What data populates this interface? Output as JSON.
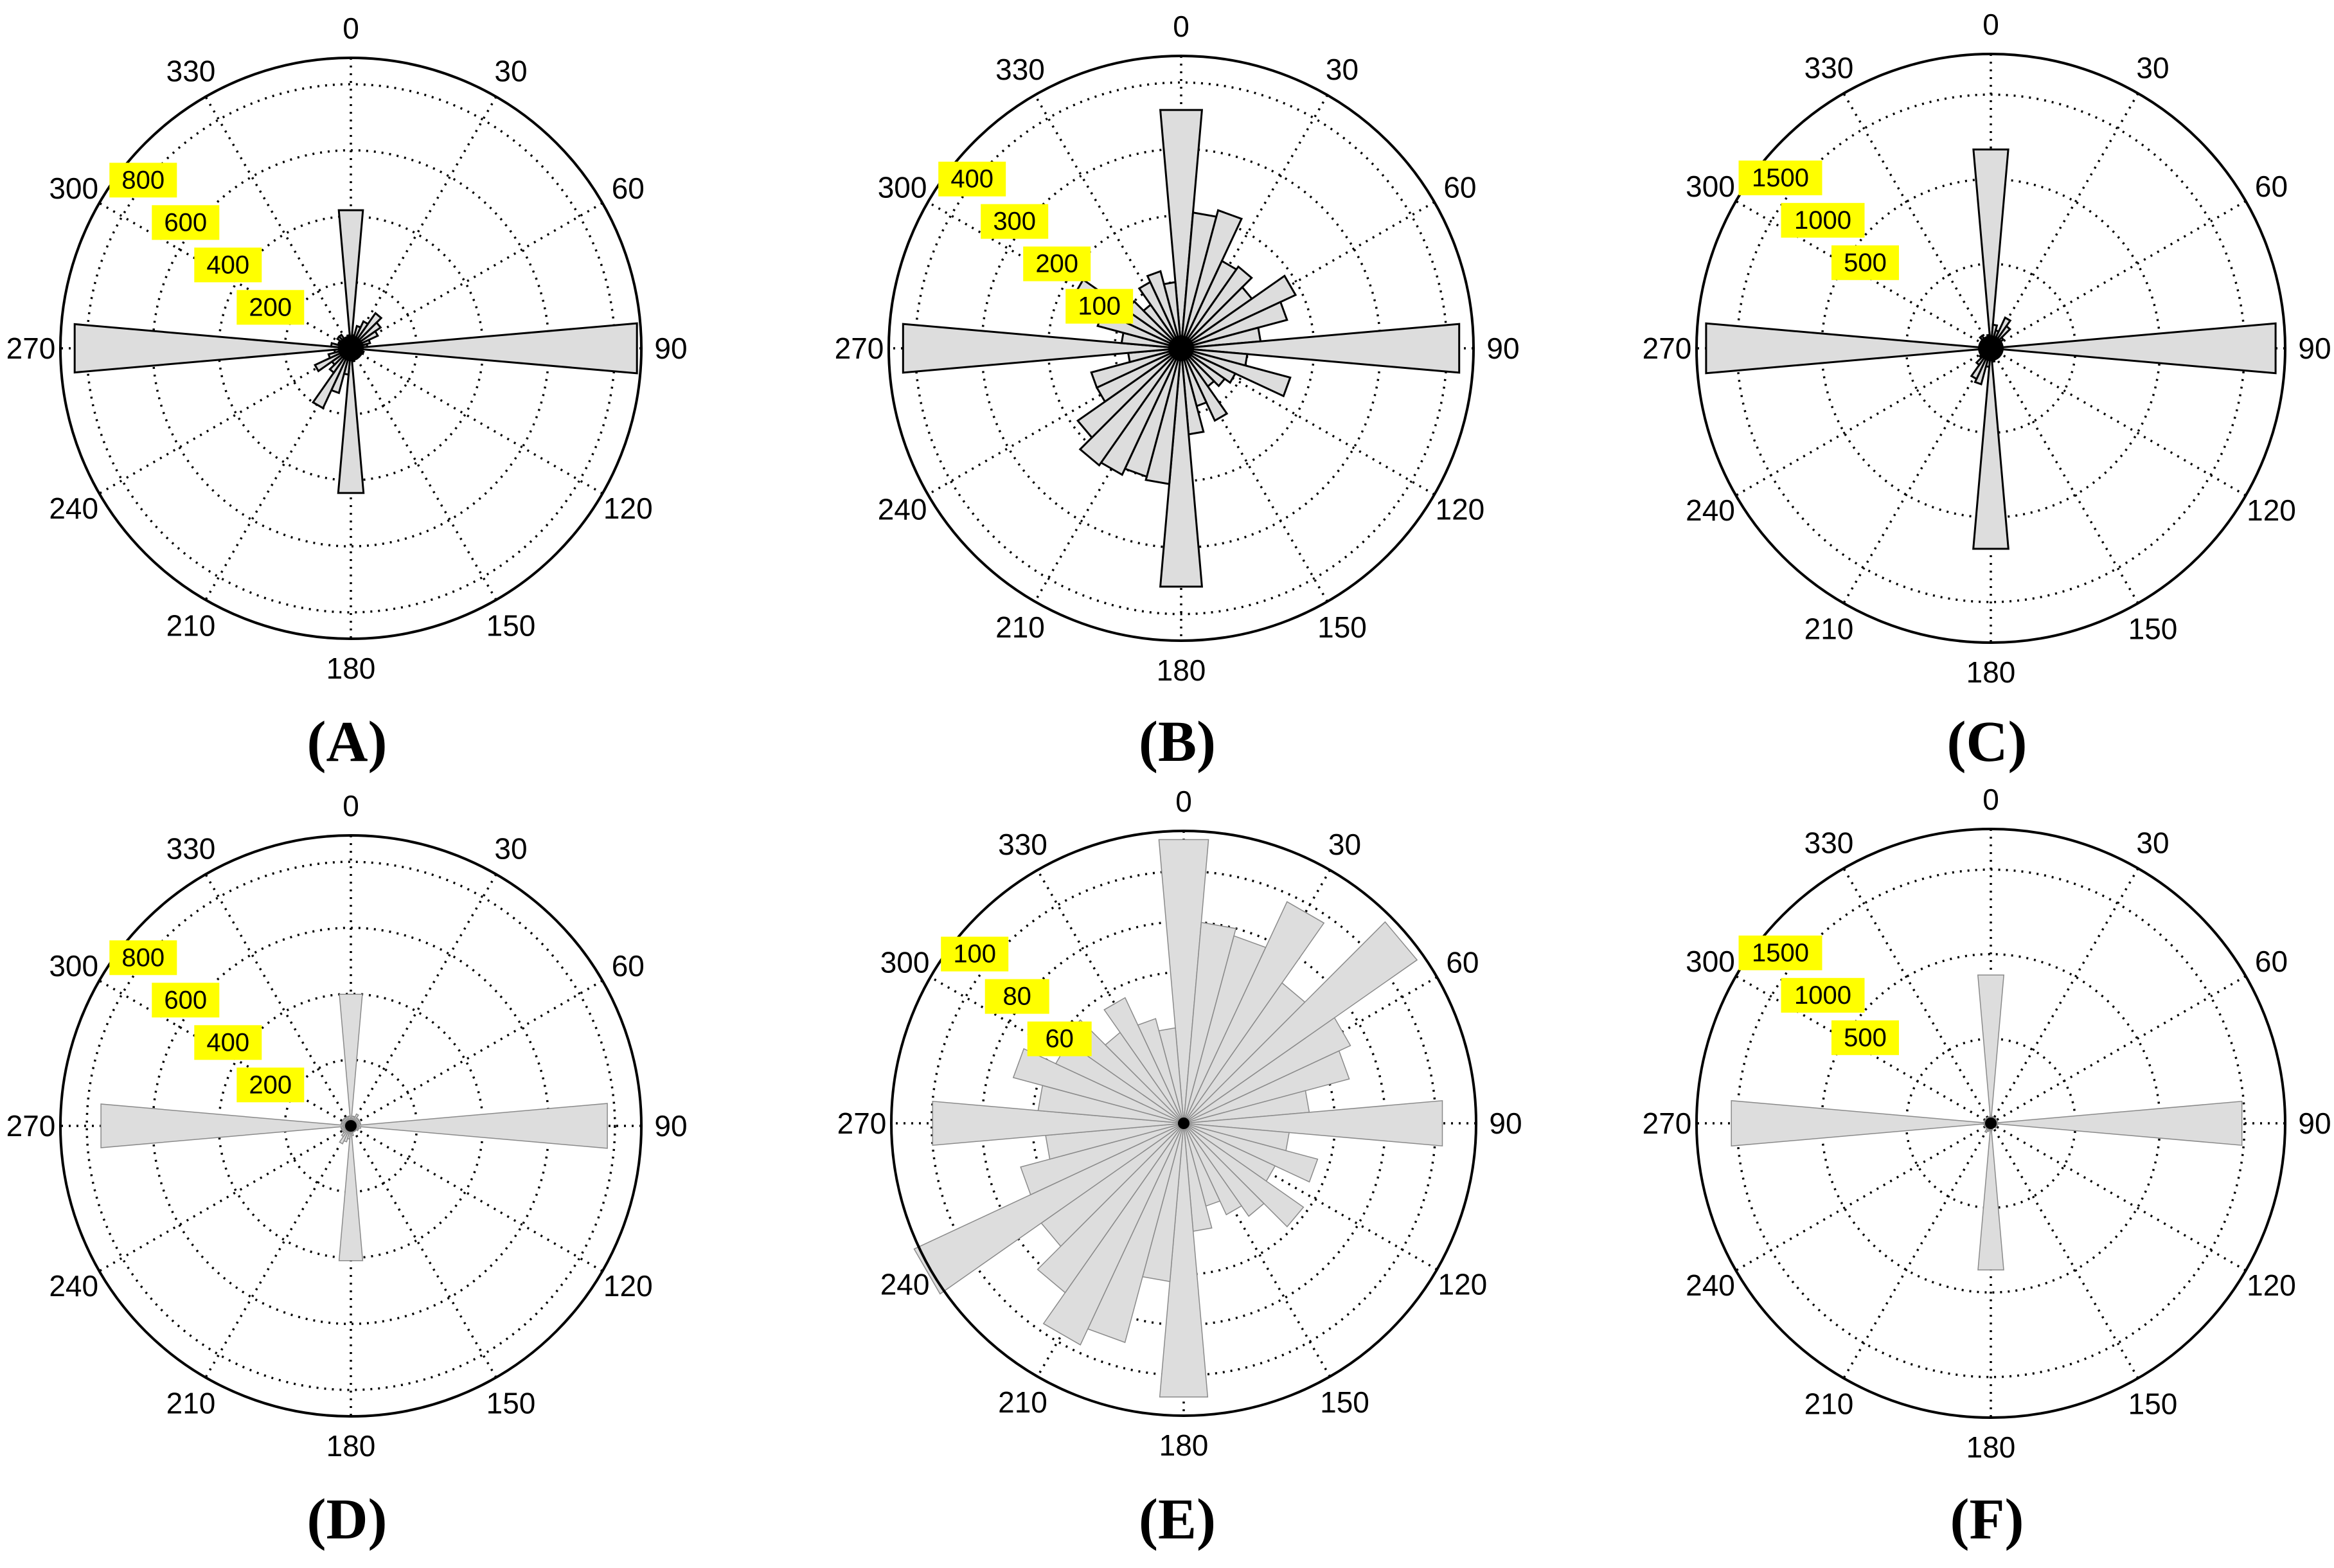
{
  "colors": {
    "bar_fill": "#dddddd",
    "bar_stroke": "#000000",
    "label_highlight": "#ffff00",
    "grid": "#000000"
  },
  "panels": [
    {
      "caption": "(A)"
    },
    {
      "caption": "(B)"
    },
    {
      "caption": "(C)"
    },
    {
      "caption": "(D)"
    },
    {
      "caption": "(E)"
    },
    {
      "caption": "(F)"
    }
  ],
  "chart_data": [
    {
      "type": "rose",
      "panel": "(A)",
      "angle_ticks": [
        "0",
        "30",
        "60",
        "90",
        "120",
        "150",
        "180",
        "210",
        "240",
        "270",
        "300",
        "330"
      ],
      "r_ticks": [
        "200",
        "400",
        "600",
        "800"
      ],
      "r_tick_values": [
        200,
        400,
        600,
        800
      ],
      "rmax": 880,
      "bin_width_deg": 10,
      "bar_outline": true,
      "bins": [
        [
          0,
          420
        ],
        [
          10,
          40
        ],
        [
          20,
          70
        ],
        [
          30,
          90
        ],
        [
          40,
          130
        ],
        [
          50,
          110
        ],
        [
          60,
          90
        ],
        [
          70,
          60
        ],
        [
          80,
          50
        ],
        [
          90,
          870
        ],
        [
          100,
          30
        ],
        [
          110,
          40
        ],
        [
          120,
          30
        ],
        [
          130,
          25
        ],
        [
          140,
          30
        ],
        [
          150,
          20
        ],
        [
          160,
          25
        ],
        [
          170,
          40
        ],
        [
          180,
          440
        ],
        [
          190,
          80
        ],
        [
          200,
          140
        ],
        [
          210,
          200
        ],
        [
          220,
          90
        ],
        [
          230,
          70
        ],
        [
          240,
          120
        ],
        [
          250,
          70
        ],
        [
          260,
          50
        ],
        [
          270,
          840
        ],
        [
          280,
          60
        ],
        [
          290,
          40
        ],
        [
          300,
          40
        ],
        [
          310,
          50
        ],
        [
          320,
          50
        ],
        [
          330,
          30
        ],
        [
          340,
          30
        ],
        [
          350,
          40
        ]
      ]
    },
    {
      "type": "rose",
      "panel": "(B)",
      "angle_ticks": [
        "0",
        "30",
        "60",
        "90",
        "120",
        "150",
        "180",
        "210",
        "240",
        "270",
        "300",
        "330"
      ],
      "r_ticks": [
        "100",
        "200",
        "300",
        "400"
      ],
      "r_tick_values": [
        100,
        200,
        300,
        400
      ],
      "rmax": 440,
      "bin_width_deg": 10,
      "bar_outline": true,
      "bins": [
        [
          0,
          360
        ],
        [
          10,
          205
        ],
        [
          20,
          215
        ],
        [
          30,
          145
        ],
        [
          40,
          150
        ],
        [
          50,
          130
        ],
        [
          60,
          190
        ],
        [
          70,
          165
        ],
        [
          80,
          120
        ],
        [
          90,
          420
        ],
        [
          100,
          100
        ],
        [
          110,
          170
        ],
        [
          120,
          90
        ],
        [
          130,
          80
        ],
        [
          140,
          70
        ],
        [
          150,
          120
        ],
        [
          160,
          90
        ],
        [
          170,
          130
        ],
        [
          180,
          360
        ],
        [
          190,
          205
        ],
        [
          200,
          200
        ],
        [
          210,
          210
        ],
        [
          220,
          215
        ],
        [
          230,
          190
        ],
        [
          240,
          140
        ],
        [
          250,
          140
        ],
        [
          260,
          80
        ],
        [
          270,
          420
        ],
        [
          280,
          90
        ],
        [
          290,
          130
        ],
        [
          300,
          180
        ],
        [
          310,
          100
        ],
        [
          320,
          80
        ],
        [
          330,
          110
        ],
        [
          340,
          120
        ],
        [
          350,
          100
        ]
      ]
    },
    {
      "type": "rose",
      "panel": "(C)",
      "angle_ticks": [
        "0",
        "30",
        "60",
        "90",
        "120",
        "150",
        "180",
        "210",
        "240",
        "270",
        "300",
        "330"
      ],
      "r_ticks": [
        "500",
        "1000",
        "1500"
      ],
      "r_tick_values": [
        500,
        1000,
        1500
      ],
      "rmax": 1740,
      "bin_width_deg": 10,
      "bar_outline": true,
      "bins": [
        [
          0,
          1180
        ],
        [
          10,
          140
        ],
        [
          20,
          110
        ],
        [
          30,
          200
        ],
        [
          40,
          160
        ],
        [
          50,
          90
        ],
        [
          60,
          70
        ],
        [
          70,
          60
        ],
        [
          80,
          50
        ],
        [
          90,
          1690
        ],
        [
          100,
          40
        ],
        [
          110,
          40
        ],
        [
          120,
          50
        ],
        [
          130,
          40
        ],
        [
          140,
          30
        ],
        [
          150,
          30
        ],
        [
          160,
          40
        ],
        [
          170,
          80
        ],
        [
          180,
          1190
        ],
        [
          190,
          110
        ],
        [
          200,
          220
        ],
        [
          210,
          200
        ],
        [
          220,
          120
        ],
        [
          230,
          80
        ],
        [
          240,
          60
        ],
        [
          250,
          60
        ],
        [
          260,
          50
        ],
        [
          270,
          1690
        ],
        [
          280,
          50
        ],
        [
          290,
          60
        ],
        [
          300,
          60
        ],
        [
          310,
          60
        ],
        [
          320,
          90
        ],
        [
          330,
          70
        ],
        [
          340,
          60
        ],
        [
          350,
          80
        ]
      ]
    },
    {
      "type": "rose",
      "panel": "(D)",
      "angle_ticks": [
        "0",
        "30",
        "60",
        "90",
        "120",
        "150",
        "180",
        "210",
        "240",
        "270",
        "300",
        "330"
      ],
      "r_ticks": [
        "200",
        "400",
        "600",
        "800"
      ],
      "r_tick_values": [
        200,
        400,
        600,
        800
      ],
      "rmax": 880,
      "bin_width_deg": 10,
      "bar_outline": false,
      "bins": [
        [
          0,
          400
        ],
        [
          10,
          30
        ],
        [
          20,
          30
        ],
        [
          30,
          40
        ],
        [
          40,
          30
        ],
        [
          50,
          30
        ],
        [
          60,
          30
        ],
        [
          70,
          30
        ],
        [
          80,
          30
        ],
        [
          90,
          780
        ],
        [
          100,
          30
        ],
        [
          110,
          25
        ],
        [
          120,
          25
        ],
        [
          130,
          20
        ],
        [
          140,
          20
        ],
        [
          150,
          20
        ],
        [
          160,
          20
        ],
        [
          170,
          30
        ],
        [
          180,
          410
        ],
        [
          190,
          40
        ],
        [
          200,
          50
        ],
        [
          210,
          60
        ],
        [
          220,
          40
        ],
        [
          230,
          30
        ],
        [
          240,
          30
        ],
        [
          250,
          30
        ],
        [
          260,
          30
        ],
        [
          270,
          760
        ],
        [
          280,
          30
        ],
        [
          290,
          30
        ],
        [
          300,
          30
        ],
        [
          310,
          30
        ],
        [
          320,
          30
        ],
        [
          330,
          30
        ],
        [
          340,
          30
        ],
        [
          350,
          30
        ]
      ]
    },
    {
      "type": "rose",
      "panel": "(E)",
      "angle_ticks": [
        "0",
        "30",
        "60",
        "90",
        "120",
        "150",
        "180",
        "210",
        "240",
        "270",
        "300",
        "330"
      ],
      "r_ticks": [
        "60",
        "80",
        "100"
      ],
      "r_tick_values": [
        60,
        80,
        100
      ],
      "rmax": 116,
      "bin_width_deg": 10,
      "bar_outline": false,
      "bins": [
        [
          0,
          113
        ],
        [
          10,
          80
        ],
        [
          20,
          77
        ],
        [
          30,
          97
        ],
        [
          40,
          68
        ],
        [
          50,
          113
        ],
        [
          60,
          73
        ],
        [
          70,
          68
        ],
        [
          80,
          50
        ],
        [
          90,
          103
        ],
        [
          100,
          42
        ],
        [
          110,
          55
        ],
        [
          120,
          40
        ],
        [
          130,
          58
        ],
        [
          140,
          45
        ],
        [
          150,
          40
        ],
        [
          160,
          34
        ],
        [
          170,
          43
        ],
        [
          180,
          109
        ],
        [
          190,
          63
        ],
        [
          200,
          90
        ],
        [
          210,
          97
        ],
        [
          220,
          82
        ],
        [
          230,
          69
        ],
        [
          240,
          118
        ],
        [
          250,
          67
        ],
        [
          260,
          55
        ],
        [
          270,
          100
        ],
        [
          280,
          58
        ],
        [
          290,
          70
        ],
        [
          300,
          56
        ],
        [
          310,
          58
        ],
        [
          320,
          44
        ],
        [
          330,
          55
        ],
        [
          340,
          43
        ],
        [
          350,
          38
        ]
      ]
    },
    {
      "type": "rose",
      "panel": "(F)",
      "angle_ticks": [
        "0",
        "30",
        "60",
        "90",
        "120",
        "150",
        "180",
        "210",
        "240",
        "270",
        "300",
        "330"
      ],
      "r_ticks": [
        "500",
        "1000",
        "1500"
      ],
      "r_tick_values": [
        500,
        1000,
        1500
      ],
      "rmax": 1740,
      "bin_width_deg": 10,
      "bar_outline": false,
      "bins": [
        [
          0,
          880
        ],
        [
          10,
          40
        ],
        [
          20,
          40
        ],
        [
          30,
          40
        ],
        [
          40,
          40
        ],
        [
          50,
          40
        ],
        [
          60,
          40
        ],
        [
          70,
          40
        ],
        [
          80,
          40
        ],
        [
          90,
          1490
        ],
        [
          100,
          40
        ],
        [
          110,
          40
        ],
        [
          120,
          40
        ],
        [
          130,
          40
        ],
        [
          140,
          30
        ],
        [
          150,
          30
        ],
        [
          160,
          30
        ],
        [
          170,
          40
        ],
        [
          180,
          870
        ],
        [
          190,
          40
        ],
        [
          200,
          50
        ],
        [
          210,
          60
        ],
        [
          220,
          40
        ],
        [
          230,
          40
        ],
        [
          240,
          40
        ],
        [
          250,
          40
        ],
        [
          260,
          40
        ],
        [
          270,
          1540
        ],
        [
          280,
          40
        ],
        [
          290,
          40
        ],
        [
          300,
          40
        ],
        [
          310,
          40
        ],
        [
          320,
          40
        ],
        [
          330,
          40
        ],
        [
          340,
          40
        ],
        [
          350,
          40
        ]
      ]
    }
  ]
}
